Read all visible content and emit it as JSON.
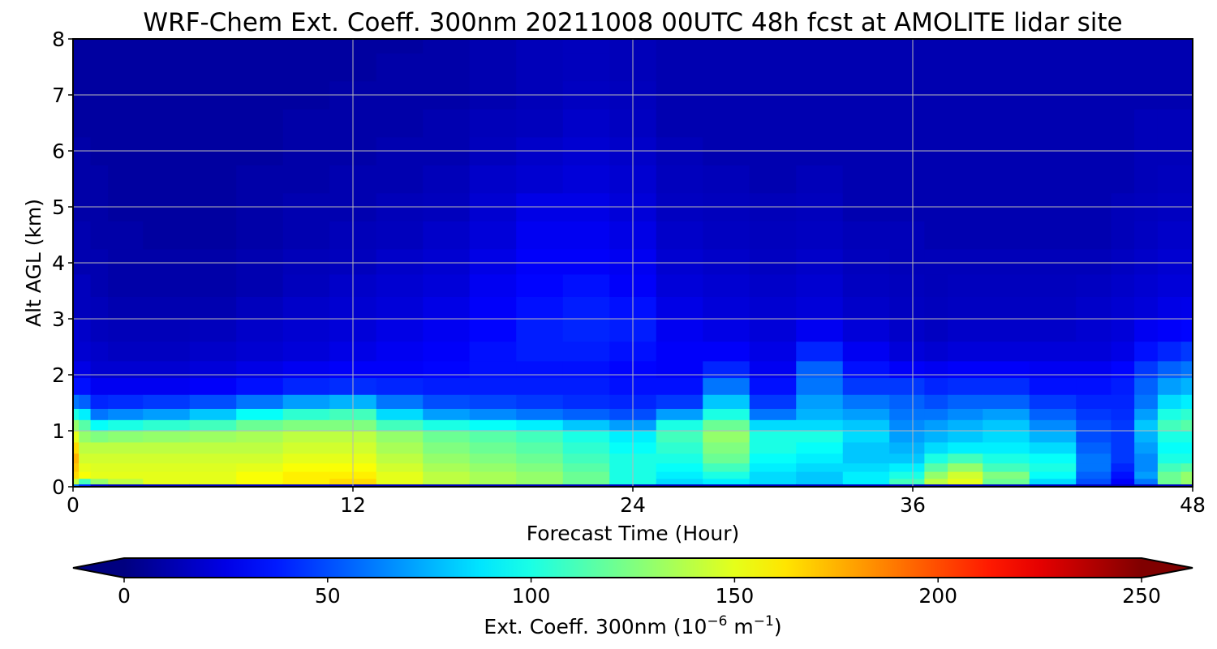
{
  "chart_data": {
    "type": "heatmap",
    "title": "WRF-Chem Ext. Coeff. 300nm  20211008 00UTC 48h fcst at AMOLITE lidar site",
    "xlabel": "Forecast Time (Hour)",
    "ylabel": "Alt AGL (km)",
    "xlim": [
      0,
      48
    ],
    "ylim": [
      0,
      8
    ],
    "x_ticks": [
      "0",
      "12",
      "24",
      "36",
      "48"
    ],
    "y_ticks": [
      "0",
      "1",
      "2",
      "3",
      "4",
      "5",
      "6",
      "7",
      "8"
    ],
    "grid": true,
    "colormap": "jet",
    "colorbar": {
      "orientation": "horizontal",
      "extend": "both",
      "range": [
        0,
        250
      ],
      "ticks": [
        "0",
        "50",
        "100",
        "150",
        "200",
        "250"
      ],
      "label_main": "Ext. Coeff. 300nm  (10",
      "label_exp1": "−6",
      "label_mid": " m",
      "label_exp2": "−1",
      "label_end": ")"
    },
    "x": [
      0,
      0.5,
      1,
      2,
      4,
      6,
      8,
      10,
      12,
      14,
      16,
      18,
      20,
      22,
      24,
      26,
      28,
      30,
      32,
      34,
      36,
      37,
      38,
      40,
      42,
      44,
      45,
      46,
      47,
      48
    ],
    "y": [
      0,
      0.1,
      0.2,
      0.35,
      0.5,
      0.7,
      0.9,
      1.1,
      1.3,
      1.5,
      1.8,
      2.1,
      2.4,
      2.8,
      3.2,
      3.6,
      4.0,
      4.5,
      5.0,
      5.5,
      6.0,
      6.5,
      7.0,
      7.5,
      8.0
    ],
    "series": [
      {
        "z": [
          [
            60,
            140,
            165,
            170,
            175,
            165,
            150,
            130,
            100,
            60,
            35,
            25,
            20,
            20,
            15,
            15,
            12,
            12,
            10,
            10,
            10,
            8,
            8,
            8,
            8
          ],
          [
            40,
            110,
            155,
            150,
            145,
            140,
            130,
            115,
            90,
            55,
            35,
            25,
            20,
            18,
            15,
            15,
            12,
            12,
            10,
            10,
            10,
            8,
            8,
            8,
            8
          ],
          [
            20,
            130,
            150,
            148,
            145,
            140,
            125,
            95,
            60,
            40,
            28,
            20,
            18,
            15,
            14,
            12,
            12,
            10,
            10,
            10,
            8,
            8,
            8,
            8,
            8
          ],
          [
            15,
            140,
            150,
            148,
            145,
            140,
            128,
            100,
            65,
            42,
            28,
            20,
            16,
            14,
            12,
            10,
            10,
            10,
            8,
            8,
            8,
            8,
            8,
            8,
            8
          ],
          [
            15,
            150,
            150,
            148,
            145,
            140,
            130,
            105,
            70,
            45,
            28,
            20,
            16,
            14,
            12,
            10,
            10,
            8,
            8,
            8,
            8,
            8,
            8,
            8,
            8
          ],
          [
            15,
            150,
            150,
            148,
            145,
            140,
            132,
            110,
            80,
            50,
            30,
            22,
            18,
            15,
            12,
            10,
            10,
            8,
            8,
            8,
            8,
            8,
            8,
            8,
            8
          ],
          [
            15,
            155,
            155,
            150,
            145,
            140,
            135,
            120,
            95,
            60,
            35,
            25,
            20,
            18,
            15,
            12,
            12,
            10,
            10,
            10,
            8,
            8,
            8,
            8,
            8
          ],
          [
            15,
            160,
            160,
            155,
            150,
            145,
            140,
            125,
            105,
            70,
            40,
            28,
            22,
            20,
            18,
            15,
            14,
            12,
            12,
            10,
            10,
            10,
            8,
            8,
            8
          ],
          [
            15,
            165,
            160,
            155,
            150,
            145,
            140,
            125,
            110,
            75,
            42,
            30,
            25,
            22,
            20,
            18,
            15,
            14,
            12,
            12,
            10,
            10,
            10,
            8,
            8
          ],
          [
            15,
            150,
            150,
            145,
            140,
            135,
            130,
            110,
            85,
            60,
            40,
            30,
            28,
            25,
            22,
            20,
            18,
            15,
            14,
            12,
            12,
            10,
            10,
            10,
            8
          ],
          [
            15,
            140,
            140,
            135,
            130,
            125,
            120,
            100,
            70,
            50,
            38,
            32,
            30,
            28,
            25,
            22,
            20,
            18,
            15,
            14,
            12,
            12,
            10,
            10,
            10
          ],
          [
            15,
            135,
            135,
            130,
            125,
            120,
            115,
            95,
            65,
            48,
            38,
            35,
            35,
            32,
            30,
            28,
            25,
            22,
            20,
            18,
            15,
            14,
            12,
            12,
            12
          ],
          [
            15,
            130,
            130,
            125,
            120,
            115,
            110,
            90,
            60,
            45,
            38,
            35,
            38,
            38,
            35,
            32,
            30,
            28,
            25,
            20,
            18,
            15,
            14,
            14,
            14
          ],
          [
            15,
            120,
            120,
            115,
            110,
            105,
            100,
            80,
            55,
            42,
            38,
            35,
            38,
            40,
            38,
            35,
            30,
            28,
            25,
            22,
            20,
            18,
            16,
            15,
            15
          ],
          [
            15,
            100,
            100,
            100,
            100,
            95,
            90,
            70,
            50,
            40,
            35,
            32,
            35,
            38,
            35,
            30,
            28,
            25,
            22,
            20,
            18,
            16,
            15,
            14,
            14
          ],
          [
            15,
            85,
            90,
            95,
            100,
            105,
            110,
            100,
            70,
            45,
            35,
            30,
            30,
            28,
            25,
            22,
            20,
            18,
            16,
            15,
            14,
            12,
            12,
            12,
            12
          ],
          [
            15,
            90,
            100,
            110,
            120,
            125,
            130,
            120,
            100,
            80,
            60,
            40,
            30,
            25,
            22,
            20,
            18,
            16,
            15,
            14,
            12,
            12,
            12,
            12,
            12
          ],
          [
            15,
            85,
            85,
            90,
            95,
            100,
            100,
            85,
            60,
            45,
            35,
            28,
            25,
            22,
            20,
            18,
            16,
            15,
            14,
            12,
            12,
            12,
            12,
            12,
            12
          ],
          [
            15,
            80,
            80,
            85,
            90,
            95,
            100,
            85,
            75,
            70,
            60,
            55,
            40,
            28,
            22,
            20,
            18,
            16,
            15,
            14,
            12,
            12,
            12,
            12,
            12
          ],
          [
            15,
            90,
            90,
            85,
            80,
            80,
            85,
            80,
            70,
            60,
            45,
            35,
            28,
            22,
            18,
            16,
            15,
            14,
            12,
            12,
            12,
            12,
            12,
            12,
            12
          ],
          [
            15,
            110,
            100,
            90,
            80,
            75,
            70,
            65,
            60,
            55,
            45,
            30,
            22,
            18,
            16,
            15,
            14,
            14,
            12,
            12,
            12,
            12,
            12,
            12,
            12
          ],
          [
            15,
            140,
            130,
            115,
            100,
            85,
            75,
            70,
            60,
            50,
            40,
            28,
            20,
            16,
            15,
            14,
            14,
            12,
            12,
            12,
            12,
            12,
            12,
            12,
            12
          ],
          [
            15,
            150,
            145,
            130,
            110,
            90,
            80,
            75,
            65,
            55,
            42,
            30,
            22,
            18,
            16,
            15,
            14,
            12,
            12,
            12,
            12,
            12,
            12,
            12,
            12
          ],
          [
            15,
            120,
            125,
            110,
            100,
            90,
            85,
            80,
            70,
            55,
            42,
            30,
            22,
            18,
            16,
            15,
            14,
            12,
            12,
            12,
            12,
            12,
            12,
            12,
            12
          ],
          [
            15,
            85,
            95,
            100,
            95,
            85,
            75,
            65,
            55,
            45,
            35,
            28,
            22,
            18,
            16,
            15,
            14,
            12,
            12,
            12,
            12,
            12,
            12,
            12,
            12
          ],
          [
            15,
            50,
            55,
            60,
            60,
            55,
            50,
            50,
            45,
            40,
            35,
            28,
            22,
            20,
            18,
            16,
            14,
            12,
            12,
            12,
            12,
            12,
            12,
            12,
            12
          ],
          [
            15,
            30,
            35,
            40,
            45,
            45,
            45,
            45,
            42,
            40,
            38,
            32,
            25,
            22,
            20,
            18,
            16,
            14,
            14,
            12,
            12,
            12,
            12,
            12,
            12
          ],
          [
            15,
            60,
            70,
            65,
            65,
            70,
            75,
            80,
            70,
            60,
            55,
            45,
            35,
            28,
            22,
            20,
            18,
            16,
            15,
            14,
            14,
            14,
            12,
            12,
            12
          ],
          [
            15,
            120,
            120,
            110,
            100,
            95,
            100,
            110,
            100,
            85,
            70,
            55,
            40,
            30,
            25,
            22,
            20,
            18,
            16,
            15,
            14,
            14,
            12,
            12,
            12
          ],
          [
            15,
            130,
            130,
            115,
            100,
            95,
            100,
            115,
            105,
            90,
            75,
            60,
            45,
            32,
            26,
            22,
            20,
            18,
            16,
            15,
            14,
            14,
            12,
            12,
            12
          ]
        ]
      }
    ]
  }
}
